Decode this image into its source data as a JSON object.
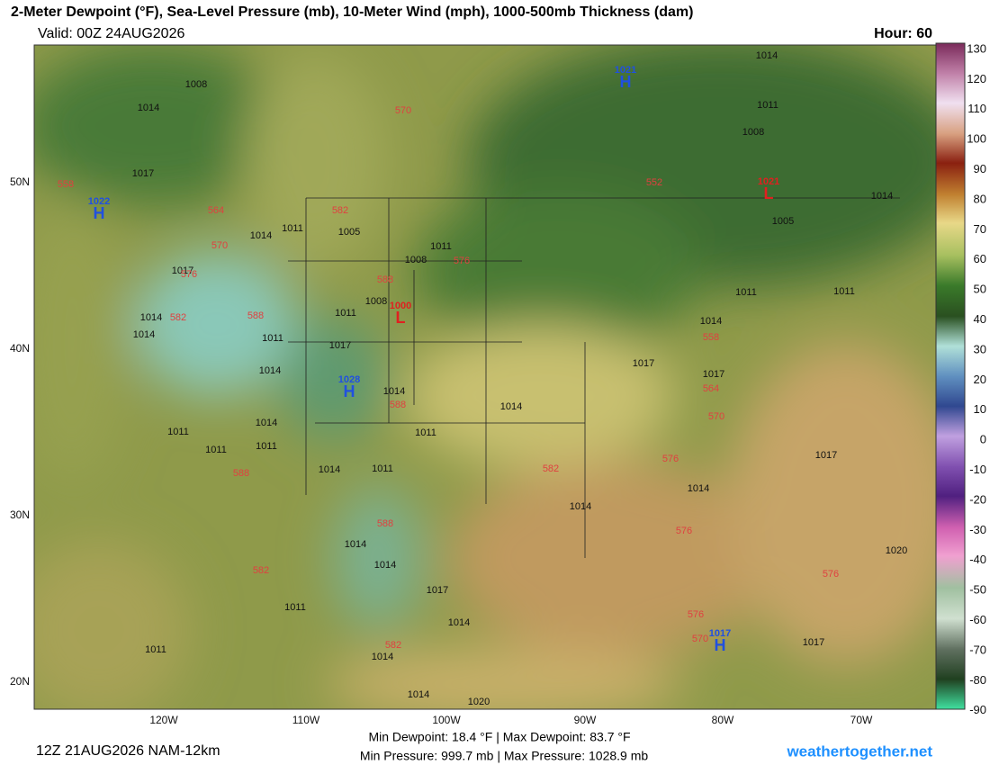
{
  "header": {
    "title": "2-Meter Dewpoint (°F), Sea-Level Pressure (mb), 10-Meter Wind (mph), 1000-500mb Thickness (dam)",
    "valid": "Valid: 00Z 24AUG2026",
    "hour": "Hour: 60"
  },
  "colorbar": {
    "labels": [
      "130",
      "120",
      "110",
      "100",
      "90",
      "80",
      "70",
      "60",
      "50",
      "40",
      "30",
      "20",
      "10",
      "0",
      "-10",
      "-20",
      "-30",
      "-40",
      "-50",
      "-60",
      "-70",
      "-80",
      "-90"
    ]
  },
  "map": {
    "lat_labels": [
      "50N",
      "40N",
      "30N",
      "20N"
    ],
    "lon_labels": [
      "120W",
      "110W",
      "100W",
      "90W",
      "80W",
      "70W"
    ],
    "pressure_labels": [
      "1008",
      "1014",
      "1017",
      "1014",
      "1011",
      "1005",
      "1011",
      "1008",
      "1017",
      "1014",
      "1014",
      "1008",
      "1011",
      "1011",
      "1017",
      "1014",
      "1014",
      "1014",
      "1011",
      "1011",
      "1011",
      "1014",
      "1011",
      "1014",
      "1011",
      "1014",
      "1014",
      "1017",
      "1014",
      "1011",
      "1011",
      "1014",
      "1014",
      "1020",
      "1014",
      "1011",
      "1008",
      "1014",
      "1005",
      "1011",
      "1014",
      "1017",
      "1017",
      "1014",
      "1014",
      "1017",
      "1020",
      "1017",
      "1011"
    ],
    "thickness_labels": [
      "570",
      "552",
      "558",
      "564",
      "570",
      "576",
      "582",
      "582",
      "588",
      "588",
      "576",
      "558",
      "564",
      "570",
      "576",
      "588",
      "582",
      "588",
      "588",
      "576",
      "576",
      "582",
      "576",
      "582",
      "570"
    ],
    "highs": [
      "1021",
      "1022",
      "1028",
      "1017"
    ],
    "lows": [
      "1021",
      "1000"
    ],
    "high_letter": "H",
    "low_letter": "L"
  },
  "footer": {
    "run": "12Z 21AUG2026 NAM-12km",
    "dewpoint_stats": "Min Dewpoint:  18.4 °F | Max Dewpoint:  83.7 °F",
    "pressure_stats": "Min Pressure: 999.7 mb | Max Pressure: 1028.9 mb",
    "site": "weathertogether.net"
  }
}
